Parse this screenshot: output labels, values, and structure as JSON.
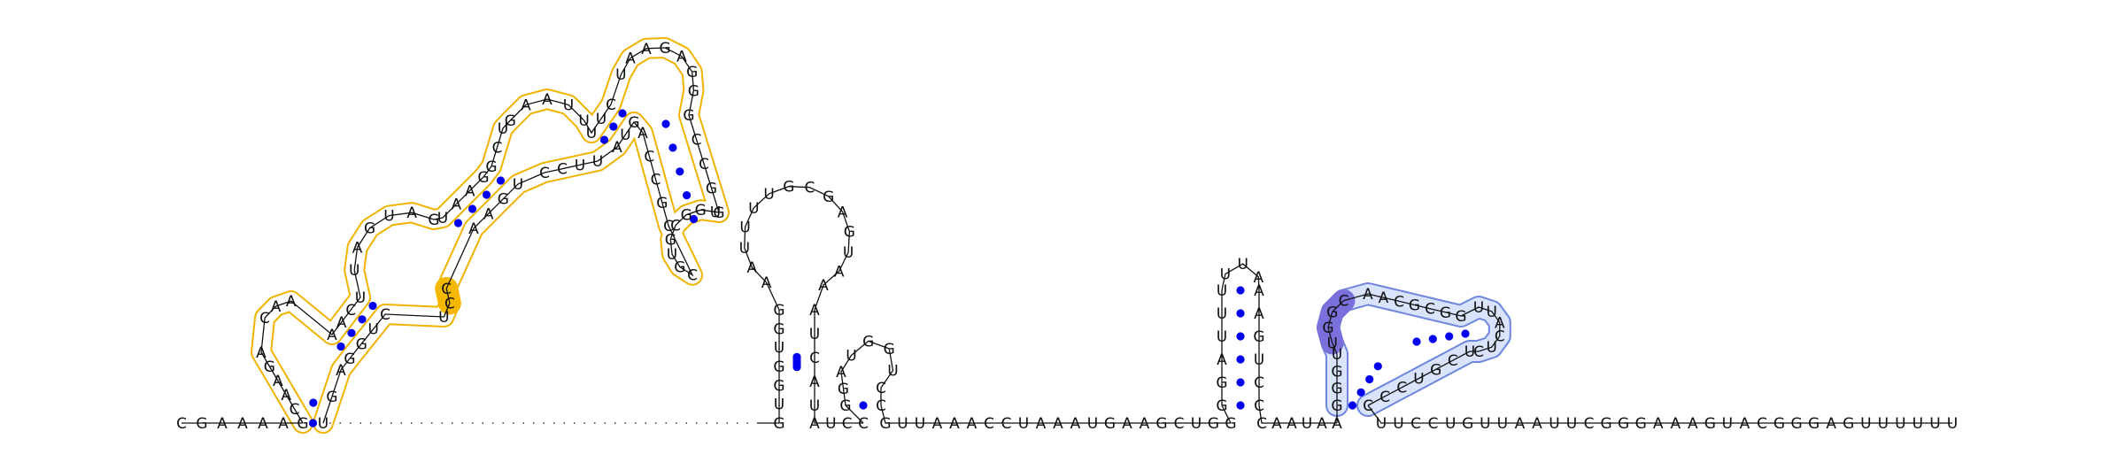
{
  "diagram": {
    "type": "rna-secondary-structure",
    "colors": {
      "nucleotide_text": "#111111",
      "backbone_link": "#111111",
      "base_pair_dot": "#0000ee",
      "highlight_orange_stroke": "#f0b400",
      "highlight_orange_fill": "#f5b800",
      "highlight_blue_stroke": "#6f86de",
      "highlight_blue_fill": "#d9e3fb",
      "highlight_purple_fill": "#7a70dc"
    },
    "strands": {
      "leader": [
        "C",
        "G",
        "A",
        "A",
        "A",
        "A"
      ],
      "stem1_bottom_left": [
        "G",
        "C",
        "A",
        "A",
        "G",
        "A"
      ],
      "loop1_left": [
        "C",
        "A",
        "A"
      ],
      "stem2_up": [
        "A",
        "A",
        "C",
        "U"
      ],
      "big_loop_top": [
        "U",
        "A",
        "G",
        "U",
        "A",
        "G"
      ],
      "stem3_up": [
        "U",
        "A",
        "A",
        "G"
      ],
      "loop3_left": [
        "G",
        "C",
        "U"
      ],
      "loop3_top": [
        "G",
        "A",
        "A",
        "U",
        "U"
      ],
      "stem4_up": [
        "U",
        "U",
        "C"
      ],
      "hairpin_top": [
        "U",
        "A",
        "A",
        "G",
        "A",
        "G",
        "G"
      ],
      "stem5_right": [
        "G",
        "C",
        "C",
        "G",
        "G"
      ],
      "small_loop": [
        "U",
        "G",
        "G",
        "C",
        "G",
        "U",
        "G",
        "C"
      ],
      "stem5_left": [
        "C",
        "G",
        "C",
        "C",
        "A"
      ],
      "stem4_down": [
        "G",
        "U",
        "A"
      ],
      "internal_right": [
        "U",
        "U",
        "C",
        "C"
      ],
      "stem3_down": [
        "U",
        "G",
        "A",
        "A"
      ],
      "bulge": [
        "C",
        "C",
        "U"
      ],
      "stem2_down": [
        "C",
        "U",
        "G",
        "G"
      ],
      "stem1_bottom_right": [
        "A",
        "G",
        "U"
      ],
      "single_strand_dots": 40,
      "hairpin_b_left": [
        "G",
        "U",
        "G",
        "G",
        "U",
        "G",
        "G"
      ],
      "hairpin_b_loop": [
        "A",
        "A",
        "U",
        "U",
        "U",
        "U",
        "G",
        "C",
        "G",
        "A",
        "G",
        "U",
        "A",
        "A"
      ],
      "hairpin_b_right": [
        "A",
        "U",
        "C",
        "A",
        "U"
      ],
      "spacer": [
        "A",
        "U",
        "C",
        "C"
      ],
      "hairpin_c_left": [
        "G",
        "G",
        "A"
      ],
      "hairpin_c_loop": [
        "U",
        "G",
        "G",
        "U"
      ],
      "hairpin_c_right": [
        "C",
        "C"
      ],
      "middle": [
        "G",
        "U",
        "U",
        "A",
        "A",
        "A",
        "C",
        "C",
        "U",
        "A",
        "A",
        "A",
        "U",
        "G",
        "A",
        "A",
        "G",
        "C",
        "U",
        "G",
        "G"
      ],
      "hairpin_d_left": [
        "G",
        "G",
        "A",
        "U",
        "U",
        "U"
      ],
      "hairpin_d_loop": [
        "U",
        "U",
        "A"
      ],
      "hairpin_d_right": [
        "A",
        "A",
        "G",
        "U",
        "C",
        "C"
      ],
      "spacer2": [
        "C",
        "A",
        "A",
        "U",
        "A",
        "A"
      ],
      "hairpin_e_left": [
        "G",
        "G",
        "G",
        "U"
      ],
      "hairpin_e_purple": [
        "U",
        "G",
        "G",
        "C"
      ],
      "hairpin_e_top": [
        "A",
        "A",
        "C",
        "G",
        "C",
        "G",
        "G"
      ],
      "hairpin_e_loop": [
        "U",
        "U",
        "A",
        "C",
        "U",
        "C"
      ],
      "hairpin_e_return": [
        "U",
        "C",
        "G",
        "U",
        "C",
        "C",
        "C"
      ],
      "trailer": [
        "U",
        "U",
        "C",
        "C",
        "U",
        "G",
        "U",
        "U",
        "A",
        "A",
        "U",
        "U",
        "C",
        "G",
        "G",
        "G",
        "A",
        "A",
        "A",
        "G",
        "U",
        "A",
        "C",
        "G",
        "G",
        "G",
        "A",
        "G",
        "U",
        "U",
        "U",
        "U",
        "U",
        "U"
      ]
    }
  }
}
